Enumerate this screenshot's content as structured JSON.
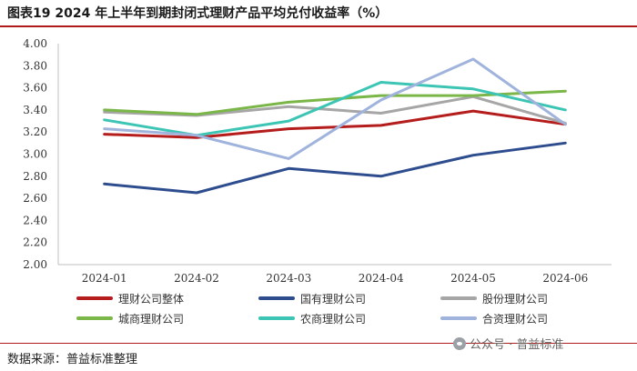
{
  "header": {
    "title": "图表19  2024 年上半年到期封闭式理财产品平均兑付收益率（%）"
  },
  "footer": {
    "source": "数据来源：普益标准整理",
    "watermark": "公众号 · 普益标准"
  },
  "icons": {
    "watermark": "wechat-icon"
  },
  "chart_data": {
    "type": "line",
    "categories": [
      "2024-01",
      "2024-02",
      "2024-03",
      "2024-04",
      "2024-05",
      "2024-06"
    ],
    "ylim": [
      2.0,
      4.0
    ],
    "yticks": [
      "2.00",
      "2.20",
      "2.40",
      "2.60",
      "2.80",
      "3.00",
      "3.20",
      "3.40",
      "3.60",
      "3.80",
      "4.00"
    ],
    "grid": false,
    "legend_position": "bottom",
    "series": [
      {
        "name": "理财公司整体",
        "color": "#b51c1c",
        "values": [
          3.18,
          3.15,
          3.23,
          3.26,
          3.39,
          3.27
        ]
      },
      {
        "name": "国有理财公司",
        "color": "#2e4d8e",
        "values": [
          2.73,
          2.65,
          2.87,
          2.8,
          2.99,
          3.1
        ]
      },
      {
        "name": "股份理财公司",
        "color": "#a6a6a6",
        "values": [
          3.38,
          3.35,
          3.43,
          3.37,
          3.52,
          3.28
        ]
      },
      {
        "name": "城商理财公司",
        "color": "#7ab648",
        "values": [
          3.4,
          3.36,
          3.47,
          3.53,
          3.53,
          3.57
        ]
      },
      {
        "name": "农商理财公司",
        "color": "#3cc5b4",
        "values": [
          3.31,
          3.17,
          3.3,
          3.65,
          3.59,
          3.4
        ]
      },
      {
        "name": "合资理财公司",
        "color": "#9fb3dc",
        "values": [
          3.23,
          3.17,
          2.96,
          3.49,
          3.86,
          3.27
        ]
      }
    ]
  }
}
